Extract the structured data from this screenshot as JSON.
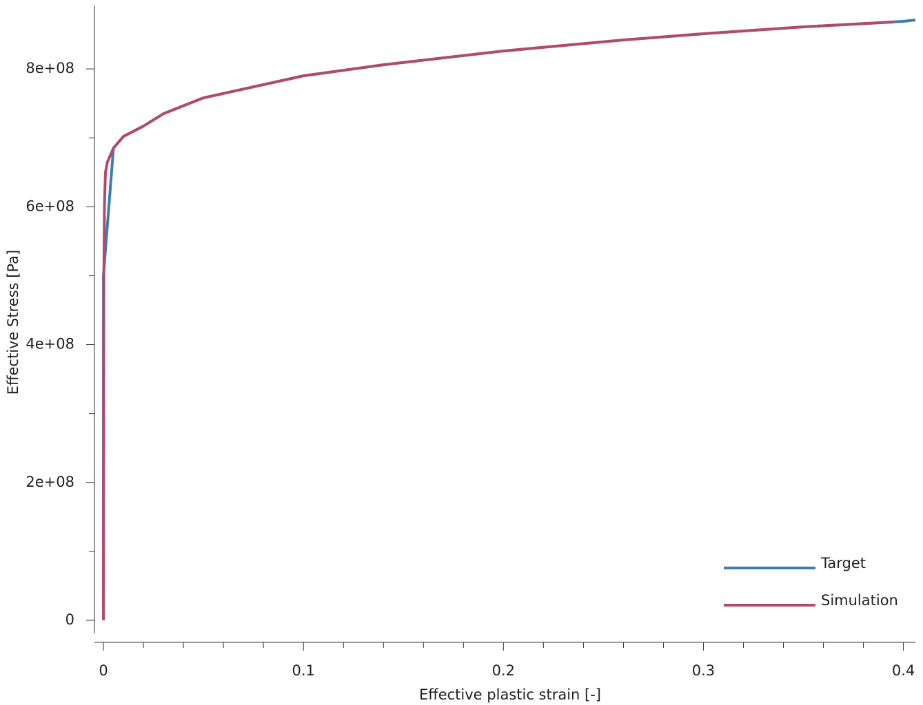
{
  "chart_data": {
    "type": "line",
    "xlabel": "Effective plastic strain [-]",
    "ylabel": "Effective Stress [Pa]",
    "xlim": [
      -0.0045,
      0.406
    ],
    "ylim": [
      -27000000,
      892000000
    ],
    "xticks": [
      0,
      0.1,
      0.2,
      0.3,
      0.4
    ],
    "xminorticks": [
      0.02,
      0.04,
      0.06,
      0.08,
      0.12,
      0.14,
      0.16,
      0.18,
      0.22,
      0.24,
      0.26,
      0.28,
      0.32,
      0.34,
      0.36,
      0.38
    ],
    "yticks": [
      0,
      {
        "value": 200000000,
        "label": "2e+08"
      },
      {
        "value": 400000000,
        "label": "4e+08"
      },
      {
        "value": 600000000,
        "label": "6e+08"
      },
      {
        "value": 800000000,
        "label": "8e+08"
      }
    ],
    "yminorticks": [
      100000000,
      300000000,
      500000000,
      700000000
    ],
    "legend": "lower right",
    "series": [
      {
        "name": "Target",
        "color": "#3a7db3",
        "x": [
          0,
          0,
          0.005,
          0.01,
          0.02,
          0.03,
          0.05,
          0.1,
          0.14,
          0.2,
          0.26,
          0.3,
          0.35,
          0.4,
          0.406
        ],
        "values": [
          0,
          500000000,
          685000000,
          702000000,
          717000000,
          735000000,
          758000000,
          790000000,
          806000000,
          826000000,
          842000000,
          851000000,
          861000000,
          869000000,
          871000000
        ]
      },
      {
        "name": "Simulation",
        "color": "#b24a6c",
        "x": [
          0,
          0.0002,
          0.0005,
          0.001,
          0.002,
          0.005,
          0.01,
          0.02,
          0.03,
          0.05,
          0.1,
          0.14,
          0.2,
          0.26,
          0.3,
          0.35,
          0.395
        ],
        "values": [
          0,
          500000000,
          600000000,
          650000000,
          665000000,
          685000000,
          702000000,
          717000000,
          735000000,
          758000000,
          790000000,
          806000000,
          826000000,
          842000000,
          851000000,
          861000000,
          868000000
        ]
      }
    ]
  }
}
